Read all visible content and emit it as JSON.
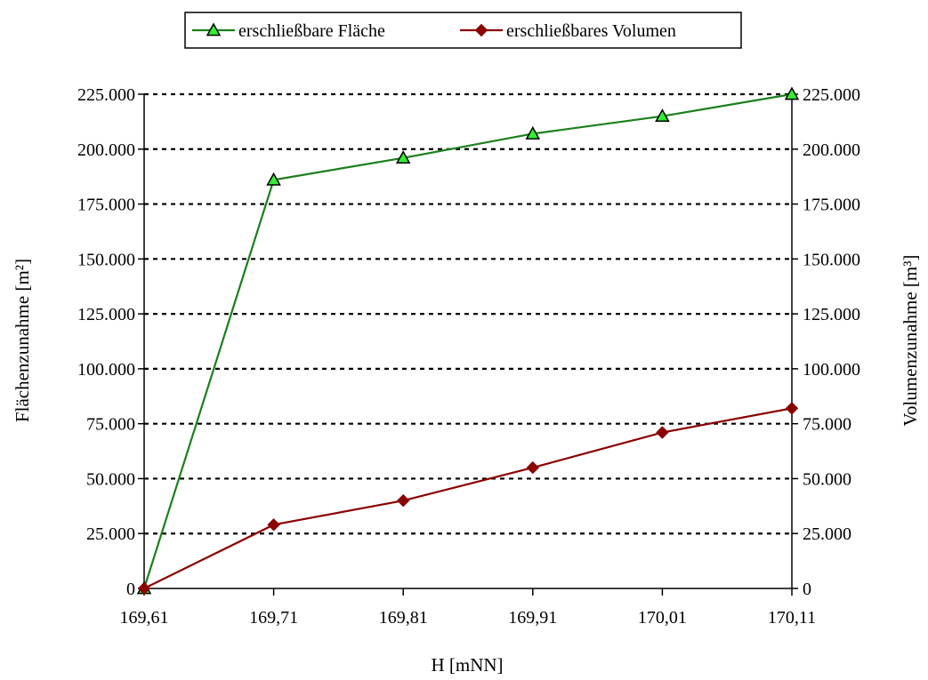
{
  "chart_data": {
    "type": "line",
    "title": "",
    "xlabel": "H [mNN]",
    "ylabel": "Flächenzunahme [m²]",
    "y2label": "Volumenzunahme [m³]",
    "categories": [
      "169,61",
      "169,71",
      "169,81",
      "169,91",
      "170,01",
      "170,11"
    ],
    "ylim": [
      0,
      225000
    ],
    "y2lim": [
      0,
      225000
    ],
    "yticks": [
      "0",
      "25.000",
      "50.000",
      "75.000",
      "100.000",
      "125.000",
      "150.000",
      "175.000",
      "200.000",
      "225.000"
    ],
    "y2ticks": [
      "0",
      "25.000",
      "50.000",
      "75.000",
      "100.000",
      "125.000",
      "150.000",
      "175.000",
      "200.000",
      "225.000"
    ],
    "grid": "horizontal dotted",
    "legend_position": "top-center",
    "series": [
      {
        "name": "erschließbare Fläche",
        "axis": "left",
        "color": "#1a7f1a",
        "marker": "triangle",
        "marker_fill": "#33ee33",
        "values": [
          0,
          186000,
          196000,
          207000,
          215000,
          225000
        ]
      },
      {
        "name": "erschließbares Volumen",
        "axis": "right",
        "color": "#8b0000",
        "marker": "diamond",
        "marker_fill": "#8b0000",
        "values": [
          0,
          29000,
          40000,
          55000,
          71000,
          82000
        ]
      }
    ]
  }
}
